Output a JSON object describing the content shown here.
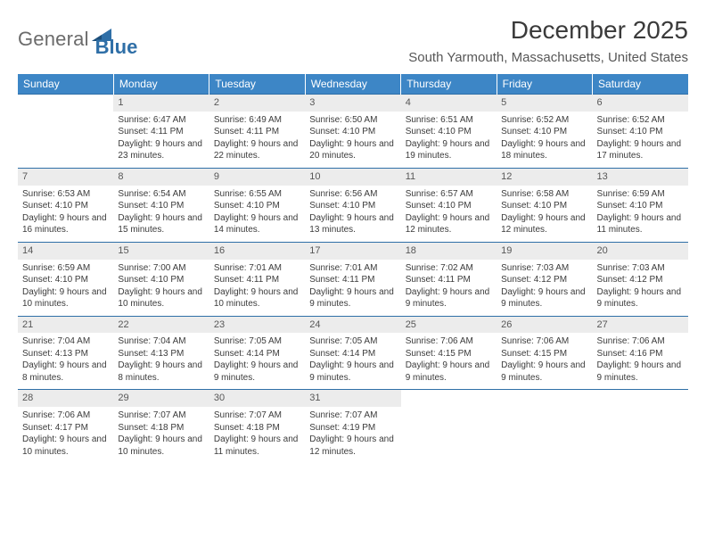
{
  "logo": {
    "word1": "General",
    "word2": "Blue"
  },
  "title": "December 2025",
  "location": "South Yarmouth, Massachusetts, United States",
  "colors": {
    "header_bg": "#3d86c6",
    "header_fg": "#ffffff",
    "divider": "#2f6fa7",
    "daynum_bg": "#ececec",
    "text": "#3b3b3b",
    "page_bg": "#ffffff",
    "logo_gray": "#6b6b6b",
    "logo_blue": "#2f6fa7"
  },
  "typography": {
    "title_fontsize": 28,
    "location_fontsize": 15,
    "th_fontsize": 12,
    "daynum_fontsize": 11,
    "cell_fontsize": 10,
    "font_family": "Arial"
  },
  "calendar": {
    "type": "table",
    "columns": [
      "Sunday",
      "Monday",
      "Tuesday",
      "Wednesday",
      "Thursday",
      "Friday",
      "Saturday"
    ],
    "first_weekday_index": 1,
    "days": [
      {
        "n": 1,
        "sunrise": "6:47 AM",
        "sunset": "4:11 PM",
        "daylight": "9 hours and 23 minutes."
      },
      {
        "n": 2,
        "sunrise": "6:49 AM",
        "sunset": "4:11 PM",
        "daylight": "9 hours and 22 minutes."
      },
      {
        "n": 3,
        "sunrise": "6:50 AM",
        "sunset": "4:10 PM",
        "daylight": "9 hours and 20 minutes."
      },
      {
        "n": 4,
        "sunrise": "6:51 AM",
        "sunset": "4:10 PM",
        "daylight": "9 hours and 19 minutes."
      },
      {
        "n": 5,
        "sunrise": "6:52 AM",
        "sunset": "4:10 PM",
        "daylight": "9 hours and 18 minutes."
      },
      {
        "n": 6,
        "sunrise": "6:52 AM",
        "sunset": "4:10 PM",
        "daylight": "9 hours and 17 minutes."
      },
      {
        "n": 7,
        "sunrise": "6:53 AM",
        "sunset": "4:10 PM",
        "daylight": "9 hours and 16 minutes."
      },
      {
        "n": 8,
        "sunrise": "6:54 AM",
        "sunset": "4:10 PM",
        "daylight": "9 hours and 15 minutes."
      },
      {
        "n": 9,
        "sunrise": "6:55 AM",
        "sunset": "4:10 PM",
        "daylight": "9 hours and 14 minutes."
      },
      {
        "n": 10,
        "sunrise": "6:56 AM",
        "sunset": "4:10 PM",
        "daylight": "9 hours and 13 minutes."
      },
      {
        "n": 11,
        "sunrise": "6:57 AM",
        "sunset": "4:10 PM",
        "daylight": "9 hours and 12 minutes."
      },
      {
        "n": 12,
        "sunrise": "6:58 AM",
        "sunset": "4:10 PM",
        "daylight": "9 hours and 12 minutes."
      },
      {
        "n": 13,
        "sunrise": "6:59 AM",
        "sunset": "4:10 PM",
        "daylight": "9 hours and 11 minutes."
      },
      {
        "n": 14,
        "sunrise": "6:59 AM",
        "sunset": "4:10 PM",
        "daylight": "9 hours and 10 minutes."
      },
      {
        "n": 15,
        "sunrise": "7:00 AM",
        "sunset": "4:10 PM",
        "daylight": "9 hours and 10 minutes."
      },
      {
        "n": 16,
        "sunrise": "7:01 AM",
        "sunset": "4:11 PM",
        "daylight": "9 hours and 10 minutes."
      },
      {
        "n": 17,
        "sunrise": "7:01 AM",
        "sunset": "4:11 PM",
        "daylight": "9 hours and 9 minutes."
      },
      {
        "n": 18,
        "sunrise": "7:02 AM",
        "sunset": "4:11 PM",
        "daylight": "9 hours and 9 minutes."
      },
      {
        "n": 19,
        "sunrise": "7:03 AM",
        "sunset": "4:12 PM",
        "daylight": "9 hours and 9 minutes."
      },
      {
        "n": 20,
        "sunrise": "7:03 AM",
        "sunset": "4:12 PM",
        "daylight": "9 hours and 9 minutes."
      },
      {
        "n": 21,
        "sunrise": "7:04 AM",
        "sunset": "4:13 PM",
        "daylight": "9 hours and 8 minutes."
      },
      {
        "n": 22,
        "sunrise": "7:04 AM",
        "sunset": "4:13 PM",
        "daylight": "9 hours and 8 minutes."
      },
      {
        "n": 23,
        "sunrise": "7:05 AM",
        "sunset": "4:14 PM",
        "daylight": "9 hours and 9 minutes."
      },
      {
        "n": 24,
        "sunrise": "7:05 AM",
        "sunset": "4:14 PM",
        "daylight": "9 hours and 9 minutes."
      },
      {
        "n": 25,
        "sunrise": "7:06 AM",
        "sunset": "4:15 PM",
        "daylight": "9 hours and 9 minutes."
      },
      {
        "n": 26,
        "sunrise": "7:06 AM",
        "sunset": "4:15 PM",
        "daylight": "9 hours and 9 minutes."
      },
      {
        "n": 27,
        "sunrise": "7:06 AM",
        "sunset": "4:16 PM",
        "daylight": "9 hours and 9 minutes."
      },
      {
        "n": 28,
        "sunrise": "7:06 AM",
        "sunset": "4:17 PM",
        "daylight": "9 hours and 10 minutes."
      },
      {
        "n": 29,
        "sunrise": "7:07 AM",
        "sunset": "4:18 PM",
        "daylight": "9 hours and 10 minutes."
      },
      {
        "n": 30,
        "sunrise": "7:07 AM",
        "sunset": "4:18 PM",
        "daylight": "9 hours and 11 minutes."
      },
      {
        "n": 31,
        "sunrise": "7:07 AM",
        "sunset": "4:19 PM",
        "daylight": "9 hours and 12 minutes."
      }
    ],
    "labels": {
      "sunrise": "Sunrise:",
      "sunset": "Sunset:",
      "daylight": "Daylight:"
    }
  }
}
